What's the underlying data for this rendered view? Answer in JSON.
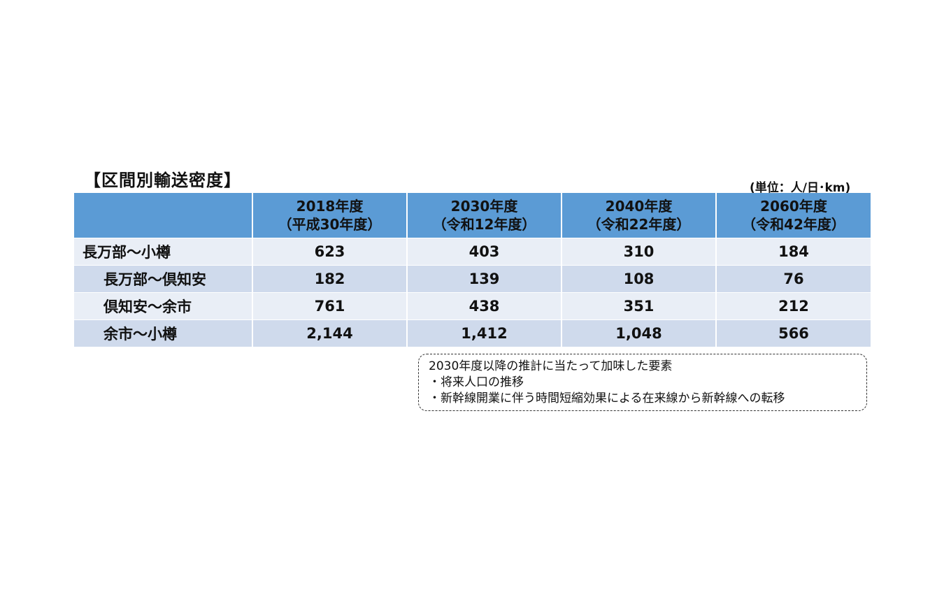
{
  "title": "【区間別輸送密度】",
  "unit": "(単位：人/日･km)",
  "table": {
    "headers": [
      {
        "year": "2018年度",
        "era": "（平成30年度）"
      },
      {
        "year": "2030年度",
        "era": "（令和12年度）"
      },
      {
        "year": "2040年度",
        "era": "（令和22年度）"
      },
      {
        "year": "2060年度",
        "era": "（令和42年度）"
      }
    ],
    "rows": [
      {
        "label": "長万部～小樽",
        "values": [
          "623",
          "403",
          "310",
          "184"
        ]
      },
      {
        "label": "長万部～倶知安",
        "values": [
          "182",
          "139",
          "108",
          "76"
        ]
      },
      {
        "label": "倶知安～余市",
        "values": [
          "761",
          "438",
          "351",
          "212"
        ]
      },
      {
        "label": "余市～小樽",
        "values": [
          "2,144",
          "1,412",
          "1,048",
          "566"
        ]
      }
    ]
  },
  "note": {
    "heading": "2030年度以降の推計に当たって加味した要素",
    "items": [
      "・将来人口の推移",
      "・新幹線開業に伴う時間短縮効果による在来線から新幹線への転移"
    ]
  }
}
